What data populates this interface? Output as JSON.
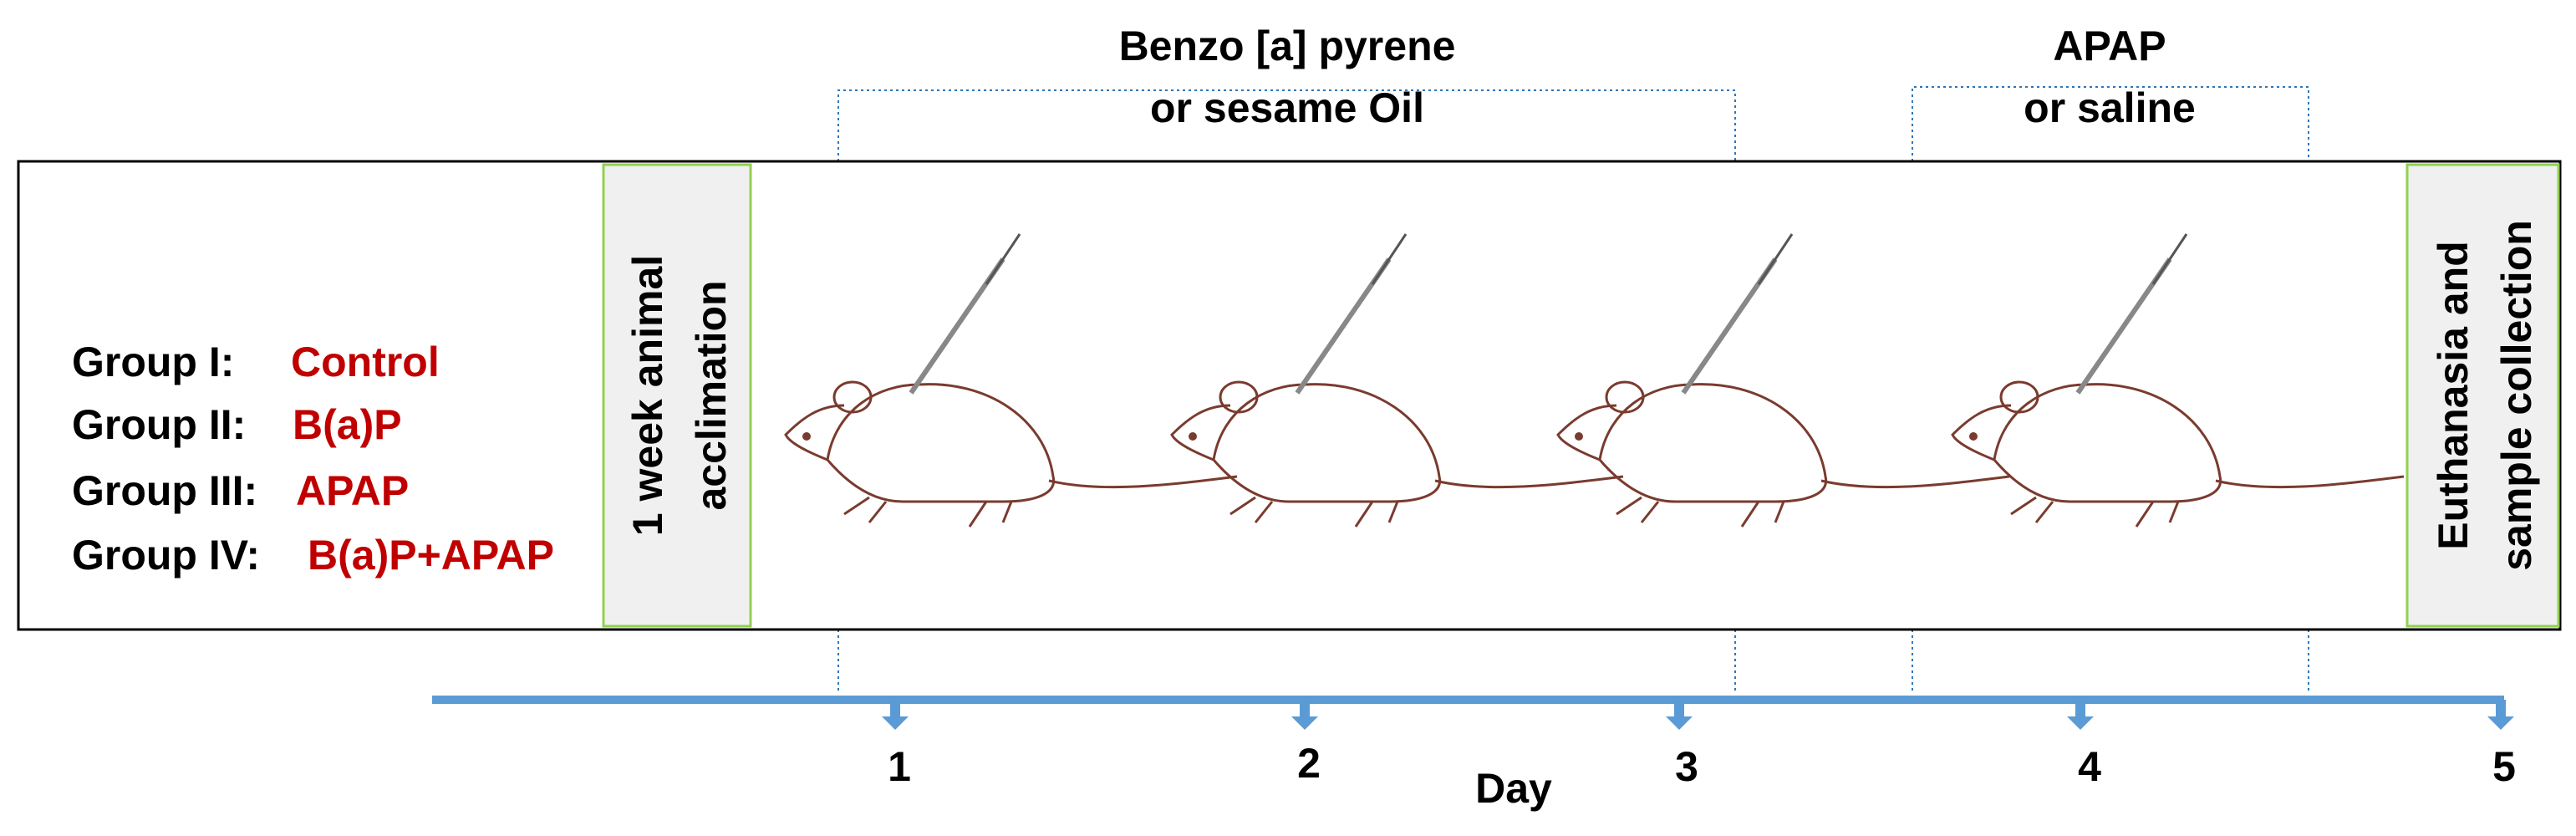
{
  "groups": [
    {
      "label": "Group I:",
      "treatment": "Control"
    },
    {
      "label": "Group II:",
      "treatment": "B(a)P"
    },
    {
      "label": "Group III:",
      "treatment": "APAP"
    },
    {
      "label": "Group IV:",
      "treatment": "B(a)P+APAP"
    }
  ],
  "acclimation": {
    "lines": [
      "1 week animal",
      "acclimation"
    ]
  },
  "euthanasia": {
    "lines": [
      "Euthanasia and",
      "sample collection"
    ]
  },
  "bap_treatment": {
    "lines": [
      "Benzo [a] pyrene",
      "or sesame Oil"
    ]
  },
  "apap_treatment": {
    "lines": [
      "APAP",
      "or saline"
    ]
  },
  "timeline": {
    "days": [
      "1",
      "2",
      "3",
      "4",
      "5"
    ],
    "label": "Day"
  }
}
